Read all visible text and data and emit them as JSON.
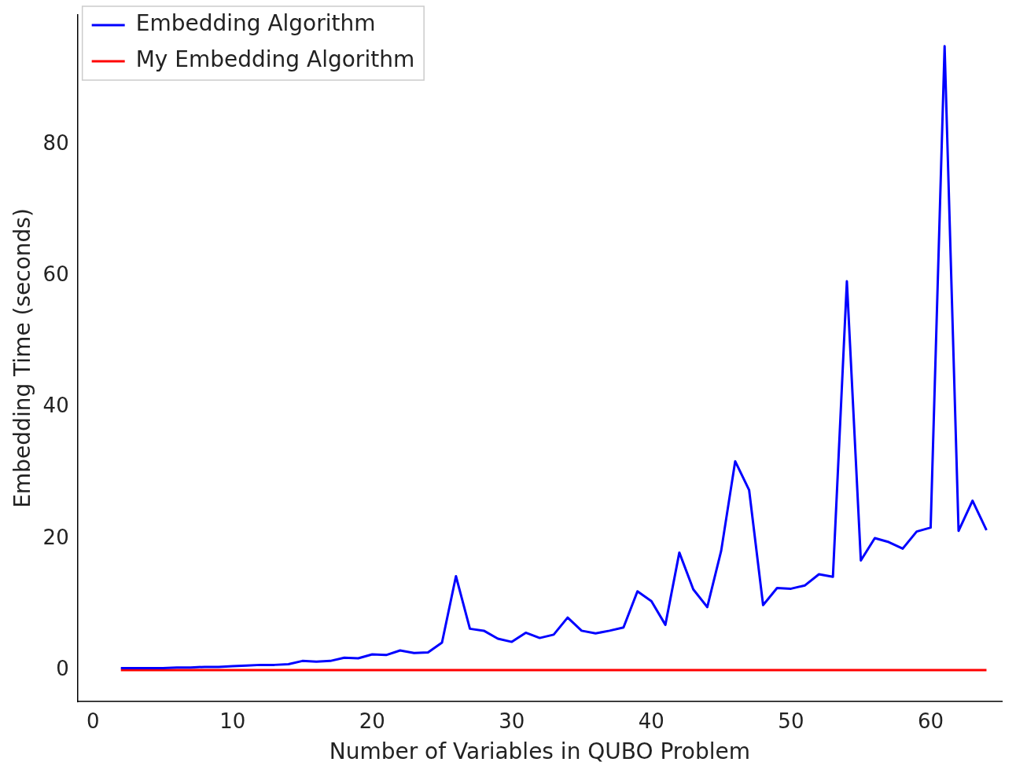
{
  "chart_data": {
    "type": "line",
    "xlabel": "Number of Variables in QUBO Problem",
    "ylabel": "Embedding Time (seconds)",
    "x": [
      2,
      3,
      4,
      5,
      6,
      7,
      8,
      9,
      10,
      11,
      12,
      13,
      14,
      15,
      16,
      17,
      18,
      19,
      20,
      21,
      22,
      23,
      24,
      25,
      26,
      27,
      28,
      29,
      30,
      31,
      32,
      33,
      34,
      35,
      36,
      37,
      38,
      39,
      40,
      41,
      42,
      43,
      44,
      45,
      46,
      47,
      48,
      49,
      50,
      51,
      52,
      53,
      54,
      55,
      56,
      57,
      58,
      59,
      60,
      61,
      62,
      63,
      64
    ],
    "series": [
      {
        "name": "Embedding Algorithm",
        "color": "#0000ff",
        "values": [
          0.3,
          0.3,
          0.3,
          0.3,
          0.4,
          0.4,
          0.5,
          0.5,
          0.6,
          0.7,
          0.8,
          0.8,
          0.9,
          1.4,
          1.3,
          1.4,
          1.9,
          1.8,
          2.4,
          2.3,
          3.0,
          2.6,
          2.7,
          4.2,
          14.3,
          6.3,
          6.0,
          4.8,
          4.3,
          5.7,
          4.9,
          5.4,
          8.0,
          6.0,
          5.6,
          6.0,
          6.5,
          12.0,
          10.5,
          6.9,
          17.9,
          12.3,
          9.6,
          18.2,
          31.8,
          27.4,
          9.9,
          12.5,
          12.4,
          12.9,
          14.6,
          14.2,
          59.2,
          16.7,
          20.1,
          19.5,
          18.5,
          21.1,
          21.7,
          95,
          21.2,
          25.8,
          21.3
        ]
      },
      {
        "name": "My Embedding Algorithm",
        "color": "#ff0000",
        "values": [
          0,
          0,
          0,
          0,
          0,
          0,
          0,
          0,
          0,
          0,
          0,
          0,
          0,
          0,
          0,
          0,
          0,
          0,
          0,
          0,
          0,
          0,
          0,
          0,
          0,
          0,
          0,
          0,
          0,
          0,
          0,
          0,
          0,
          0,
          0,
          0,
          0,
          0,
          0,
          0,
          0,
          0,
          0,
          0,
          0,
          0,
          0,
          0,
          0,
          0,
          0,
          0,
          0,
          0,
          0,
          0,
          0,
          0,
          0,
          0,
          0,
          0,
          0
        ]
      }
    ],
    "xlim": [
      -1.1,
      65.1
    ],
    "ylim": [
      -4.8,
      99.8
    ],
    "xticks": [
      0,
      10,
      20,
      30,
      40,
      50,
      60
    ],
    "yticks": [
      0,
      20,
      40,
      60,
      80
    ],
    "grid": false,
    "legend": "top left",
    "marker": "none",
    "line_style": "solid"
  }
}
